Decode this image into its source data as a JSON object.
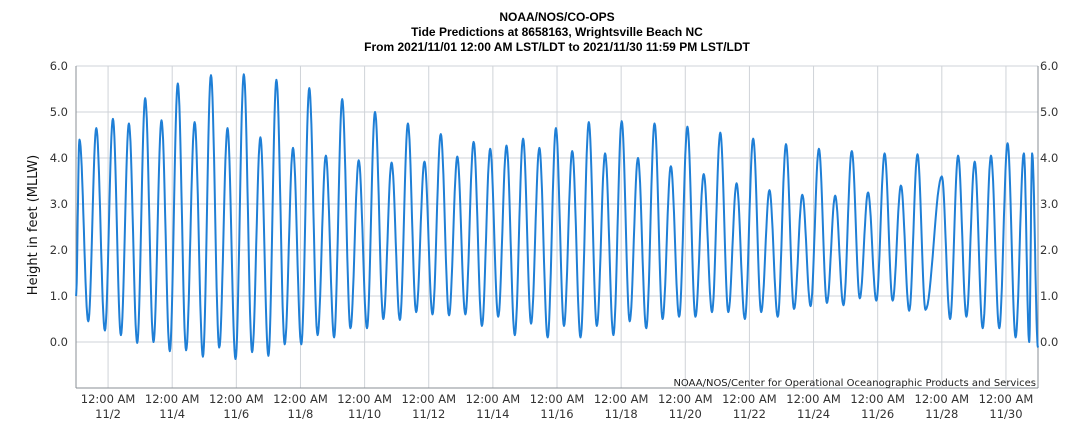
{
  "chart_data": {
    "type": "line",
    "title": "NOAA/NOS/CO-OPS",
    "subtitle": "Tide Predictions at 8658163, Wrightsville Beach NC",
    "subtitle2": "From 2021/11/01 12:00 AM LST/LDT to 2021/11/30 11:59 PM LST/LDT",
    "ylabel": "Height in feet (MLLW)",
    "credit": "NOAA/NOS/Center for Operational Oceanographic Products and Services",
    "ylim": [
      -1.0,
      6.0
    ],
    "y_ticks": [
      "6.0",
      "5.0",
      "4.0",
      "3.0",
      "2.0",
      "1.0",
      "0.0"
    ],
    "xlim": [
      "2021-11-01 00:00",
      "2021-11-30 23:59"
    ],
    "x_ticks": [
      {
        "time": "12:00 AM",
        "date": "11/2"
      },
      {
        "time": "12:00 AM",
        "date": "11/4"
      },
      {
        "time": "12:00 AM",
        "date": "11/6"
      },
      {
        "time": "12:00 AM",
        "date": "11/8"
      },
      {
        "time": "12:00 AM",
        "date": "11/10"
      },
      {
        "time": "12:00 AM",
        "date": "11/12"
      },
      {
        "time": "12:00 AM",
        "date": "11/14"
      },
      {
        "time": "12:00 AM",
        "date": "11/16"
      },
      {
        "time": "12:00 AM",
        "date": "11/18"
      },
      {
        "time": "12:00 AM",
        "date": "11/20"
      },
      {
        "time": "12:00 AM",
        "date": "11/22"
      },
      {
        "time": "12:00 AM",
        "date": "11/24"
      },
      {
        "time": "12:00 AM",
        "date": "11/26"
      },
      {
        "time": "12:00 AM",
        "date": "11/28"
      },
      {
        "time": "12:00 AM",
        "date": "11/30"
      }
    ],
    "grid": true,
    "line_color": "#1f7fd6",
    "series": [
      {
        "name": "",
        "extrema_x": [
          "2021-11-01 00:00",
          "2021-11-01 02:36",
          "2021-11-01 09:12",
          "2021-11-01 15:12",
          "2021-11-01 21:36",
          "2021-11-02 03:36",
          "2021-11-02 09:36",
          "2021-11-02 15:36",
          "2021-11-02 21:48",
          "2021-11-03 03:48",
          "2021-11-03 10:00",
          "2021-11-03 16:00",
          "2021-11-03 22:12",
          "2021-11-04 04:12",
          "2021-11-04 10:24",
          "2021-11-04 16:48",
          "2021-11-04 23:00",
          "2021-11-05 05:00",
          "2021-11-05 11:12",
          "2021-11-05 17:24",
          "2021-11-05 23:24",
          "2021-11-06 05:36",
          "2021-11-06 11:48",
          "2021-11-06 18:00",
          "2021-11-07 00:00",
          "2021-11-07 06:00",
          "2021-11-07 12:12",
          "2021-11-07 18:24",
          "2021-11-08 00:36",
          "2021-11-08 06:36",
          "2021-11-08 12:48",
          "2021-11-08 19:00",
          "2021-11-09 01:12",
          "2021-11-09 07:12",
          "2021-11-09 13:24",
          "2021-11-09 19:36",
          "2021-11-10 01:48",
          "2021-11-10 07:48",
          "2021-11-10 14:00",
          "2021-11-10 20:12",
          "2021-11-11 02:24",
          "2021-11-11 08:24",
          "2021-11-11 14:36",
          "2021-11-11 20:48",
          "2021-11-12 02:48",
          "2021-11-12 09:00",
          "2021-11-12 15:12",
          "2021-11-12 21:24",
          "2021-11-13 03:24",
          "2021-11-13 09:36",
          "2021-11-13 15:48",
          "2021-11-13 22:00",
          "2021-11-14 04:00",
          "2021-11-14 10:12",
          "2021-11-14 16:24",
          "2021-11-14 22:36",
          "2021-11-15 04:36",
          "2021-11-15 10:48",
          "2021-11-15 17:00",
          "2021-11-15 23:12",
          "2021-11-16 05:12",
          "2021-11-16 11:24",
          "2021-11-16 17:36",
          "2021-11-16 23:48",
          "2021-11-17 05:48",
          "2021-11-17 12:00",
          "2021-11-17 18:12",
          "2021-11-18 00:24",
          "2021-11-18 06:24",
          "2021-11-18 12:36",
          "2021-11-18 18:48",
          "2021-11-19 01:00",
          "2021-11-19 07:00",
          "2021-11-19 13:12",
          "2021-11-19 19:24",
          "2021-11-20 01:36",
          "2021-11-20 07:36",
          "2021-11-20 13:48",
          "2021-11-20 20:00",
          "2021-11-21 02:12",
          "2021-11-21 08:12",
          "2021-11-21 14:24",
          "2021-11-21 20:36",
          "2021-11-22 02:48",
          "2021-11-22 08:48",
          "2021-11-22 15:00",
          "2021-11-22 21:12",
          "2021-11-23 03:24",
          "2021-11-23 09:24",
          "2021-11-23 15:36",
          "2021-11-23 21:48",
          "2021-11-24 04:00",
          "2021-11-24 10:00",
          "2021-11-24 16:12",
          "2021-11-24 22:24",
          "2021-11-25 04:36",
          "2021-11-25 10:36",
          "2021-11-25 16:48",
          "2021-11-25 23:00",
          "2021-11-26 05:12",
          "2021-11-26 11:12",
          "2021-11-26 17:24",
          "2021-11-26 23:36",
          "2021-11-27 05:48",
          "2021-11-27 11:48",
          "2021-11-28 00:00",
          "2021-11-28 06:12",
          "2021-11-28 12:12",
          "2021-11-28 18:24",
          "2021-11-29 00:36",
          "2021-11-29 06:36",
          "2021-11-29 12:48",
          "2021-11-29 19:00",
          "2021-11-30 01:12",
          "2021-11-30 07:12",
          "2021-11-30 13:24",
          "2021-11-30 17:24",
          "2021-11-30 19:36",
          "2021-11-30 23:59"
        ],
        "extrema_y": [
          1.0,
          4.4,
          0.45,
          4.65,
          0.25,
          4.85,
          0.15,
          4.75,
          -0.02,
          5.3,
          0.0,
          4.82,
          -0.2,
          5.62,
          -0.18,
          4.78,
          -0.32,
          5.8,
          -0.12,
          4.65,
          -0.37,
          5.82,
          -0.22,
          4.45,
          -0.3,
          5.7,
          -0.05,
          4.22,
          -0.05,
          5.52,
          0.15,
          4.05,
          0.1,
          5.28,
          0.3,
          3.95,
          0.3,
          5.0,
          0.5,
          3.9,
          0.48,
          4.75,
          0.65,
          3.92,
          0.6,
          4.52,
          0.58,
          4.03,
          0.6,
          4.35,
          0.35,
          4.2,
          0.55,
          4.27,
          0.15,
          4.42,
          0.4,
          4.22,
          0.1,
          4.65,
          0.35,
          4.15,
          0.1,
          4.78,
          0.35,
          4.1,
          0.15,
          4.8,
          0.45,
          4.0,
          0.3,
          4.75,
          0.5,
          3.82,
          0.55,
          4.68,
          0.55,
          3.65,
          0.65,
          4.55,
          0.65,
          3.45,
          0.5,
          4.42,
          0.65,
          3.3,
          0.55,
          4.3,
          0.72,
          3.2,
          0.78,
          4.2,
          0.85,
          3.18,
          0.8,
          4.15,
          0.95,
          3.25,
          0.9,
          4.1,
          0.9,
          3.4,
          0.68,
          4.08,
          0.7,
          3.6,
          0.5,
          4.05,
          0.55,
          3.92,
          0.3,
          4.05,
          0.3,
          4.32,
          0.1,
          4.1,
          0.0,
          4.1,
          -0.12,
          1.9
        ]
      }
    ]
  }
}
